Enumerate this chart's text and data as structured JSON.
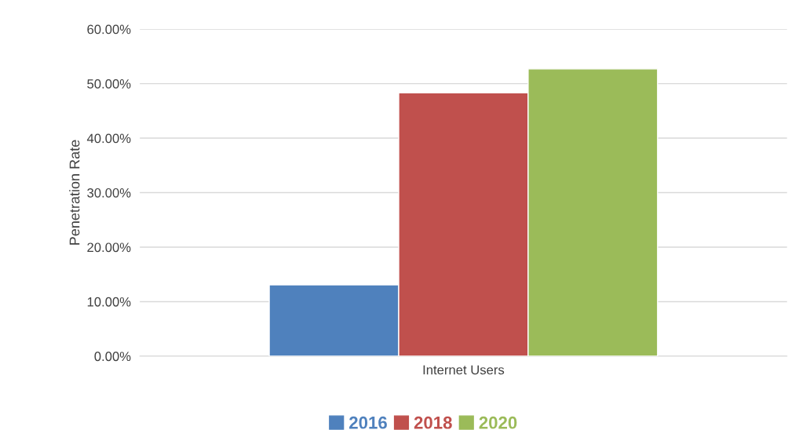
{
  "chart_data": {
    "type": "bar",
    "ylabel": "Penetration Rate",
    "categories": [
      "Internet Users"
    ],
    "series": [
      {
        "name": "2016",
        "color": "#4f81bd",
        "values": [
          13.1
        ]
      },
      {
        "name": "2018",
        "color": "#c0504d",
        "values": [
          48.3
        ]
      },
      {
        "name": "2020",
        "color": "#9bbb59",
        "values": [
          52.7
        ]
      }
    ],
    "ylim": [
      0,
      60
    ],
    "yticks": [
      {
        "value": 0,
        "label": "0.00%"
      },
      {
        "value": 10,
        "label": "10.00%"
      },
      {
        "value": 20,
        "label": "20.00%"
      },
      {
        "value": 30,
        "label": "30.00%"
      },
      {
        "value": 40,
        "label": "40.00%"
      },
      {
        "value": 50,
        "label": "50.00%"
      },
      {
        "value": 60,
        "label": "60.00%"
      }
    ],
    "grid": "y",
    "legend": "bottom"
  }
}
